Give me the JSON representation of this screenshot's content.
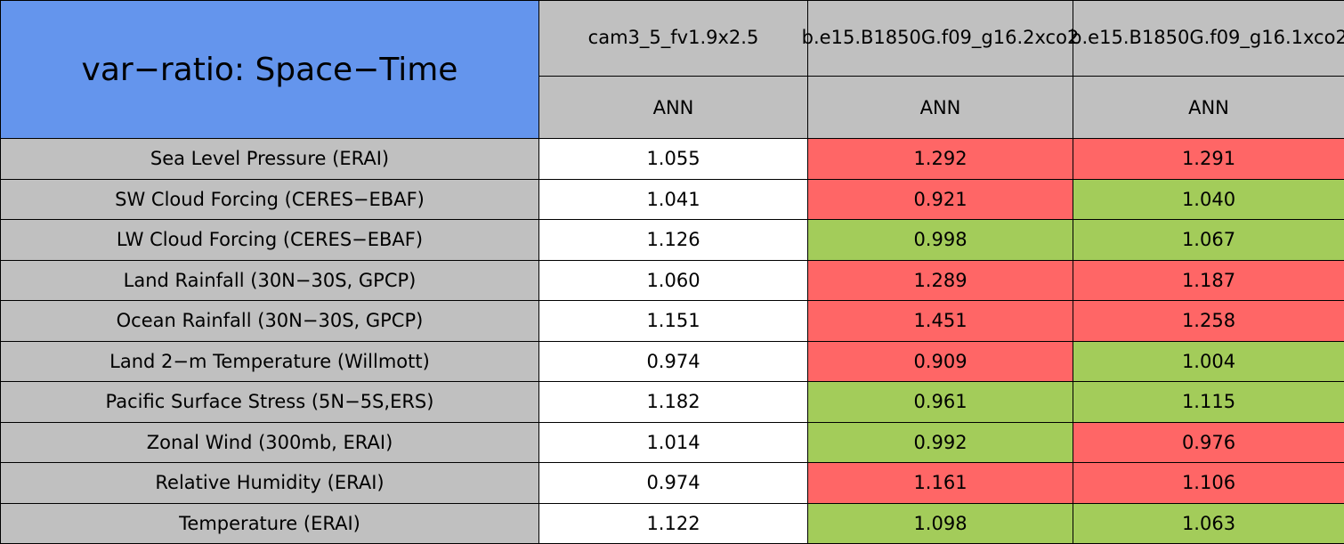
{
  "header": {
    "title": "var−ratio: Space−Time",
    "columns": [
      {
        "name": "cam3_5_fv1.9x2.5",
        "season": "ANN"
      },
      {
        "name": "b.e15.B1850G.f09_g16.2xco2",
        "season": "ANN"
      },
      {
        "name": "b.e15.B1850G.f09_g16.1xco2",
        "season": "ANN"
      }
    ]
  },
  "palette": {
    "white": "#ffffff",
    "red": "#ff6666",
    "green": "#a3cc5a",
    "gray": "#c0c0c0",
    "blue": "#6495ed"
  },
  "table": {
    "rows": [
      {
        "label": "Sea Level Pressure (ERAI)",
        "values": [
          "1.055",
          "1.292",
          "1.291"
        ],
        "colors": [
          "white",
          "red",
          "red"
        ]
      },
      {
        "label": "SW Cloud Forcing (CERES−EBAF)",
        "values": [
          "1.041",
          "0.921",
          "1.040"
        ],
        "colors": [
          "white",
          "red",
          "green"
        ]
      },
      {
        "label": "LW Cloud Forcing (CERES−EBAF)",
        "values": [
          "1.126",
          "0.998",
          "1.067"
        ],
        "colors": [
          "white",
          "green",
          "green"
        ]
      },
      {
        "label": "Land Rainfall (30N−30S, GPCP)",
        "values": [
          "1.060",
          "1.289",
          "1.187"
        ],
        "colors": [
          "white",
          "red",
          "red"
        ]
      },
      {
        "label": "Ocean Rainfall (30N−30S, GPCP)",
        "values": [
          "1.151",
          "1.451",
          "1.258"
        ],
        "colors": [
          "white",
          "red",
          "red"
        ]
      },
      {
        "label": "Land 2−m Temperature (Willmott)",
        "values": [
          "0.974",
          "0.909",
          "1.004"
        ],
        "colors": [
          "white",
          "red",
          "green"
        ]
      },
      {
        "label": "Pacific Surface Stress (5N−5S,ERS)",
        "values": [
          "1.182",
          "0.961",
          "1.115"
        ],
        "colors": [
          "white",
          "green",
          "green"
        ]
      },
      {
        "label": "Zonal Wind (300mb, ERAI)",
        "values": [
          "1.014",
          "0.992",
          "0.976"
        ],
        "colors": [
          "white",
          "green",
          "red"
        ]
      },
      {
        "label": "Relative Humidity (ERAI)",
        "values": [
          "0.974",
          "1.161",
          "1.106"
        ],
        "colors": [
          "white",
          "red",
          "red"
        ]
      },
      {
        "label": "Temperature (ERAI)",
        "values": [
          "1.122",
          "1.098",
          "1.063"
        ],
        "colors": [
          "white",
          "green",
          "green"
        ]
      }
    ]
  }
}
